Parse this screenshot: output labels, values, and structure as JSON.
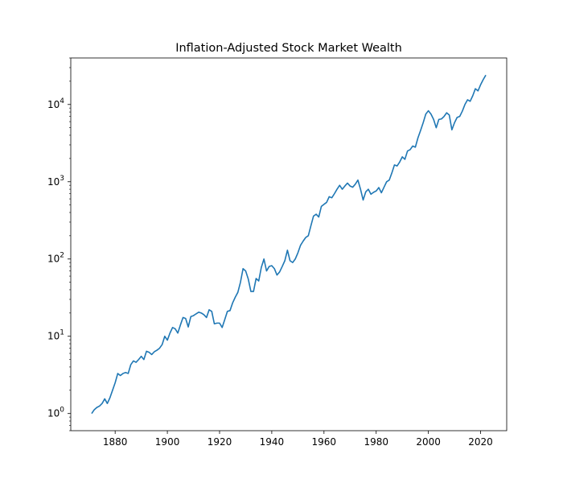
{
  "chart_data": {
    "type": "line",
    "title": "Inflation-Adjusted Stock Market Wealth",
    "xlabel": "",
    "ylabel": "",
    "yscale": "log",
    "xlim": [
      1863,
      2030
    ],
    "ylim": [
      0.6,
      40000
    ],
    "x_ticks": [
      1880,
      1900,
      1920,
      1940,
      1960,
      1980,
      2000,
      2020
    ],
    "y_ticks": [
      {
        "value": 1,
        "base": "10",
        "exp": "0"
      },
      {
        "value": 10,
        "base": "10",
        "exp": "1"
      },
      {
        "value": 100,
        "base": "10",
        "exp": "2"
      },
      {
        "value": 1000,
        "base": "10",
        "exp": "3"
      },
      {
        "value": 10000,
        "base": "10",
        "exp": "4"
      }
    ],
    "grid": false,
    "legend": "none",
    "series": [
      {
        "color": "#1f77b4",
        "x": [
          1871,
          1872,
          1873,
          1874,
          1875,
          1876,
          1877,
          1878,
          1879,
          1880,
          1881,
          1882,
          1883,
          1884,
          1885,
          1886,
          1887,
          1888,
          1889,
          1890,
          1891,
          1892,
          1893,
          1894,
          1895,
          1896,
          1897,
          1898,
          1899,
          1900,
          1901,
          1902,
          1903,
          1904,
          1905,
          1906,
          1907,
          1908,
          1909,
          1910,
          1911,
          1912,
          1913,
          1914,
          1915,
          1916,
          1917,
          1918,
          1919,
          1920,
          1921,
          1922,
          1923,
          1924,
          1925,
          1926,
          1927,
          1928,
          1929,
          1930,
          1931,
          1932,
          1933,
          1934,
          1935,
          1936,
          1937,
          1938,
          1939,
          1940,
          1941,
          1942,
          1943,
          1944,
          1945,
          1946,
          1947,
          1948,
          1949,
          1950,
          1951,
          1952,
          1953,
          1954,
          1955,
          1956,
          1957,
          1958,
          1959,
          1960,
          1961,
          1962,
          1963,
          1964,
          1965,
          1966,
          1967,
          1968,
          1969,
          1970,
          1971,
          1972,
          1973,
          1974,
          1975,
          1976,
          1977,
          1978,
          1979,
          1980,
          1981,
          1982,
          1983,
          1984,
          1985,
          1986,
          1987,
          1988,
          1989,
          1990,
          1991,
          1992,
          1993,
          1994,
          1995,
          1996,
          1997,
          1998,
          1999,
          2000,
          2001,
          2002,
          2003,
          2004,
          2005,
          2006,
          2007,
          2008,
          2009,
          2010,
          2011,
          2012,
          2013,
          2014,
          2015,
          2016,
          2017,
          2018,
          2019,
          2020,
          2021,
          2022
        ],
        "values": [
          1.0,
          1.12,
          1.2,
          1.25,
          1.35,
          1.55,
          1.35,
          1.6,
          2.0,
          2.5,
          3.3,
          3.1,
          3.3,
          3.4,
          3.3,
          4.3,
          4.8,
          4.6,
          5.0,
          5.5,
          5.0,
          6.4,
          6.2,
          5.8,
          6.3,
          6.6,
          7.0,
          7.8,
          10.0,
          8.9,
          11.0,
          13.0,
          12.5,
          11.0,
          14.0,
          17.5,
          17.0,
          13.2,
          18.0,
          18.5,
          19.5,
          20.5,
          20.0,
          19.0,
          17.5,
          22.0,
          21.0,
          14.5,
          14.8,
          14.8,
          13.0,
          16.5,
          21.0,
          21.5,
          27.0,
          32.0,
          37.0,
          50.0,
          75.0,
          70.0,
          55.0,
          38.0,
          38.0,
          56.0,
          52.0,
          78.0,
          100.0,
          70.0,
          80.0,
          82.0,
          75.0,
          62.0,
          68.0,
          80.0,
          95.0,
          130.0,
          95.0,
          90.0,
          100.0,
          120.0,
          150.0,
          170.0,
          190.0,
          200.0,
          270.0,
          360.0,
          380.0,
          350.0,
          480.0,
          510.0,
          540.0,
          640.0,
          620.0,
          700.0,
          800.0,
          900.0,
          800.0,
          880.0,
          960.0,
          880.0,
          850.0,
          930.0,
          1050.0,
          800.0,
          580.0,
          740.0,
          800.0,
          690.0,
          730.0,
          760.0,
          840.0,
          720.0,
          850.0,
          1000.0,
          1050.0,
          1300.0,
          1650.0,
          1600.0,
          1800.0,
          2100.0,
          1950.0,
          2500.0,
          2600.0,
          2900.0,
          2800.0,
          3700.0,
          4600.0,
          5800.0,
          7500.0,
          8300.0,
          7500.0,
          6400.0,
          5000.0,
          6400.0,
          6500.0,
          7000.0,
          7800.0,
          7300.0,
          4700.0,
          5800.0,
          6800.0,
          7000.0,
          8200.0,
          10000.0,
          11500.0,
          11000.0,
          13000.0,
          16000.0,
          15000.0,
          18000.0,
          21000.0,
          24000.0
        ]
      }
    ]
  }
}
